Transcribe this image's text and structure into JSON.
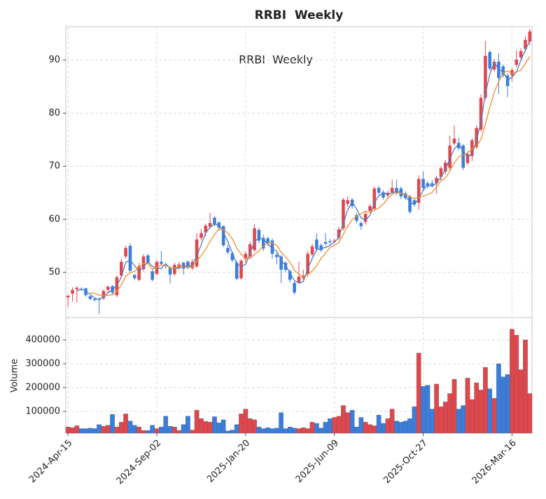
{
  "chart_data": {
    "type": "candlestick",
    "title": "RRBI  Weekly",
    "annotation": "RRBI  Weekly",
    "up_color": "#e0474c",
    "down_color": "#3b7ddd",
    "grid": true,
    "ylim": [
      41.5,
      96.3
    ],
    "yticks": [
      50,
      60,
      70,
      80,
      90
    ],
    "xticks": [
      "2024-Apr-15",
      "2024-Sep-02",
      "2025-Jan-20",
      "2025-Jun-09",
      "2025-Oct-27",
      "2026-Mar-16"
    ],
    "categories": [
      "2024-Apr-15",
      "2024-Apr-22",
      "2024-Apr-29",
      "2024-May-06",
      "2024-May-13",
      "2024-May-20",
      "2024-May-27",
      "2024-Jun-03",
      "2024-Jun-10",
      "2024-Jun-17",
      "2024-Jun-24",
      "2024-Jul-01",
      "2024-Jul-08",
      "2024-Jul-15",
      "2024-Jul-22",
      "2024-Jul-29",
      "2024-Aug-05",
      "2024-Aug-12",
      "2024-Aug-19",
      "2024-Aug-26",
      "2024-Sep-02",
      "2024-Sep-09",
      "2024-Sep-16",
      "2024-Sep-23",
      "2024-Sep-30",
      "2024-Oct-07",
      "2024-Oct-14",
      "2024-Oct-21",
      "2024-Oct-28",
      "2024-Nov-04",
      "2024-Nov-11",
      "2024-Nov-18",
      "2024-Nov-25",
      "2024-Dec-02",
      "2024-Dec-09",
      "2024-Dec-16",
      "2024-Dec-23",
      "2024-Dec-30",
      "2025-Jan-06",
      "2025-Jan-13",
      "2025-Jan-20",
      "2025-Jan-27",
      "2025-Feb-03",
      "2025-Feb-10",
      "2025-Feb-17",
      "2025-Feb-24",
      "2025-Mar-03",
      "2025-Mar-10",
      "2025-Mar-17",
      "2025-Mar-24",
      "2025-Mar-31",
      "2025-Apr-07",
      "2025-Apr-14",
      "2025-Apr-21",
      "2025-Apr-28",
      "2025-May-05",
      "2025-May-12",
      "2025-May-19",
      "2025-May-26",
      "2025-Jun-02",
      "2025-Jun-09",
      "2025-Jun-16",
      "2025-Jun-23",
      "2025-Jun-30",
      "2025-Jul-07",
      "2025-Jul-14",
      "2025-Jul-21",
      "2025-Jul-28",
      "2025-Aug-04",
      "2025-Aug-11",
      "2025-Aug-18",
      "2025-Aug-25",
      "2025-Sep-01",
      "2025-Sep-08",
      "2025-Sep-15",
      "2025-Sep-22",
      "2025-Sep-29",
      "2025-Oct-06",
      "2025-Oct-13",
      "2025-Oct-20",
      "2025-Oct-27",
      "2025-Nov-03",
      "2025-Nov-10",
      "2025-Nov-17",
      "2025-Nov-24",
      "2025-Dec-01",
      "2025-Dec-08",
      "2025-Dec-15",
      "2025-Dec-22",
      "2025-Dec-29",
      "2026-Jan-05",
      "2026-Jan-12",
      "2026-Jan-19",
      "2026-Jan-26",
      "2026-Feb-02",
      "2026-Feb-09",
      "2026-Feb-16",
      "2026-Feb-23",
      "2026-Mar-02",
      "2026-Mar-09",
      "2026-Mar-16",
      "2026-Mar-23",
      "2026-Mar-30",
      "2026-Apr-06",
      "2026-Apr-13"
    ],
    "open": [
      45.3,
      46.0,
      46.8,
      46.9,
      47.0,
      45.5,
      45.0,
      45.0,
      45.1,
      46.7,
      47.4,
      45.7,
      49.4,
      53.0,
      55.0,
      49.5,
      48.6,
      50.6,
      53.2,
      50.2,
      49.7,
      52.0,
      51.5,
      50.9,
      49.7,
      50.9,
      51.8,
      52.0,
      50.8,
      51.1,
      56.5,
      57.5,
      58.6,
      60.3,
      59.4,
      58.7,
      54.6,
      53.6,
      51.8,
      48.9,
      52.5,
      53.0,
      54.2,
      58.0,
      56.5,
      56.4,
      56.0,
      53.3,
      53.0,
      51.8,
      50.2,
      48.0,
      48.1,
      48.9,
      49.7,
      53.4,
      56.2,
      55.1,
      55.7,
      55.9,
      55.8,
      56.5,
      58.3,
      62.9,
      63.7,
      60.8,
      59.3,
      59.5,
      61.6,
      62.0,
      65.9,
      65.1,
      64.5,
      65.1,
      65.9,
      65.8,
      64.9,
      64.3,
      63.6,
      63.1,
      67.6,
      66.8,
      66.8,
      66.8,
      68.0,
      69.0,
      69.7,
      74.3,
      74.4,
      73.9,
      70.6,
      71.9,
      73.6,
      76.9,
      82.9,
      91.5,
      88.2,
      89.7,
      88.8,
      87.1,
      87.1,
      89.1,
      90.5,
      92.1,
      93.5
    ],
    "high": [
      45.8,
      47.2,
      47.4,
      47.2,
      47.1,
      45.6,
      45.2,
      45.3,
      46.8,
      47.5,
      47.6,
      49.4,
      52.6,
      55.0,
      55.5,
      49.7,
      51.8,
      53.4,
      53.5,
      50.8,
      52.3,
      54.0,
      51.8,
      51.2,
      51.8,
      52.0,
      52.0,
      52.3,
      52.5,
      57.4,
      58.2,
      59.2,
      61.2,
      60.6,
      59.6,
      58.9,
      55.2,
      54.0,
      52.2,
      52.5,
      54.0,
      55.8,
      59.1,
      58.4,
      57.1,
      56.7,
      56.4,
      53.6,
      53.3,
      52.1,
      50.6,
      48.3,
      52.0,
      50.5,
      54.0,
      55.4,
      57.4,
      55.5,
      57.4,
      56.3,
      56.3,
      58.6,
      64.0,
      64.3,
      64.0,
      61.2,
      59.6,
      61.5,
      62.9,
      66.2,
      66.3,
      65.5,
      65.4,
      67.5,
      67.5,
      66.2,
      65.3,
      64.6,
      64.0,
      68.3,
      69.0,
      67.2,
      67.4,
      68.2,
      70.0,
      71.2,
      75.8,
      77.7,
      75.3,
      74.2,
      72.8,
      75.3,
      77.7,
      83.5,
      93.6,
      91.8,
      90.2,
      91.3,
      89.2,
      87.5,
      88.5,
      91.9,
      92.2,
      94.5,
      95.9
    ],
    "low": [
      43.6,
      44.5,
      44.3,
      46.5,
      45.4,
      44.7,
      44.5,
      42.2,
      44.8,
      46.0,
      45.8,
      45.3,
      49.0,
      52.6,
      50.0,
      48.5,
      48.3,
      50.2,
      51.5,
      48.3,
      49.4,
      51.2,
      50.7,
      47.9,
      49.3,
      50.5,
      49.6,
      50.6,
      50.4,
      50.8,
      56.0,
      56.8,
      58.3,
      58.7,
      57.8,
      54.8,
      53.4,
      51.9,
      48.5,
      48.6,
      51.8,
      52.5,
      53.8,
      55.5,
      54.0,
      55.0,
      52.6,
      51.5,
      48.0,
      50.0,
      48.1,
      45.8,
      47.8,
      48.5,
      49.2,
      53.0,
      54.0,
      53.8,
      55.0,
      55.3,
      55.5,
      56.1,
      57.9,
      62.4,
      62.0,
      59.3,
      58.0,
      59.0,
      61.2,
      61.6,
      64.5,
      63.7,
      64.1,
      64.8,
      64.5,
      63.8,
      63.6,
      61.0,
      62.4,
      61.8,
      65.5,
      65.8,
      66.0,
      64.8,
      67.2,
      68.5,
      69.2,
      73.9,
      73.0,
      69.3,
      70.2,
      71.0,
      73.2,
      76.5,
      82.5,
      88.0,
      87.8,
      83.6,
      86.7,
      83.0,
      86.0,
      88.7,
      90.1,
      91.5,
      92.8
    ],
    "close": [
      45.6,
      46.7,
      47.1,
      46.8,
      45.7,
      45.0,
      44.8,
      44.8,
      46.5,
      47.3,
      46.2,
      49.1,
      52.0,
      54.6,
      50.3,
      48.9,
      51.2,
      53.0,
      51.8,
      48.6,
      52.0,
      51.6,
      51.2,
      49.6,
      51.4,
      51.5,
      50.7,
      51.2,
      52.0,
      56.2,
      57.4,
      58.8,
      59.3,
      59.1,
      58.4,
      55.1,
      53.8,
      52.3,
      48.8,
      52.2,
      53.5,
      55.3,
      58.3,
      56.0,
      54.5,
      55.5,
      53.5,
      52.9,
      50.5,
      50.5,
      48.6,
      46.2,
      49.2,
      49.4,
      53.5,
      54.9,
      54.4,
      54.2,
      55.4,
      55.7,
      56.0,
      58.1,
      63.7,
      63.6,
      62.5,
      59.7,
      58.7,
      61.0,
      62.5,
      65.8,
      65.0,
      64.1,
      65.0,
      65.9,
      64.9,
      64.3,
      64.0,
      61.4,
      62.8,
      67.6,
      65.9,
      66.2,
      66.4,
      67.8,
      69.6,
      70.7,
      73.9,
      75.2,
      73.4,
      69.7,
      72.3,
      74.9,
      77.2,
      82.9,
      90.8,
      88.4,
      89.7,
      86.6,
      87.1,
      85.1,
      88.1,
      90.1,
      91.7,
      93.8,
      95.4
    ],
    "moving_averages": [
      {
        "color": "#4a7fc1",
        "values": [
          null,
          null,
          46.47,
          46.87,
          46.53,
          45.83,
          45.17,
          44.87,
          45.37,
          46.2,
          46.67,
          47.53,
          49.1,
          51.9,
          52.3,
          51.27,
          50.13,
          51.03,
          52.0,
          51.13,
          50.8,
          50.73,
          51.6,
          50.8,
          50.73,
          50.83,
          51.2,
          51.13,
          51.3,
          53.13,
          55.2,
          57.47,
          58.5,
          59.07,
          58.93,
          57.53,
          55.77,
          53.73,
          51.63,
          51.1,
          51.5,
          53.67,
          55.7,
          56.53,
          56.27,
          55.33,
          54.5,
          53.97,
          52.3,
          51.3,
          49.87,
          48.43,
          48.0,
          48.27,
          50.7,
          52.6,
          54.27,
          54.5,
          54.67,
          55.1,
          55.7,
          56.6,
          59.27,
          61.8,
          63.27,
          61.93,
          60.3,
          59.8,
          60.73,
          63.1,
          64.43,
          64.97,
          64.7,
          65.0,
          65.27,
          65.03,
          64.4,
          63.23,
          62.73,
          63.93,
          65.43,
          66.57,
          66.17,
          66.8,
          67.93,
          69.37,
          71.4,
          73.27,
          74.17,
          72.77,
          71.8,
          72.3,
          74.8,
          78.33,
          83.63,
          87.37,
          89.63,
          88.23,
          87.8,
          86.27,
          86.77,
          87.77,
          89.97,
          91.87,
          93.63
        ]
      },
      {
        "color": "#f28e2b",
        "values": [
          null,
          null,
          null,
          null,
          null,
          46.15,
          46.02,
          45.7,
          45.6,
          45.68,
          45.77,
          46.45,
          47.65,
          49.28,
          49.92,
          50.18,
          51.02,
          51.67,
          51.63,
          50.63,
          50.92,
          51.37,
          51.37,
          50.8,
          50.73,
          51.22,
          51.0,
          50.93,
          51.07,
          52.17,
          53.17,
          54.38,
          55.82,
          57.13,
          58.2,
          58.02,
          57.42,
          56.33,
          54.58,
          53.43,
          52.62,
          52.65,
          53.4,
          54.02,
          54.97,
          55.52,
          55.52,
          55.12,
          53.82,
          52.9,
          51.92,
          50.37,
          49.65,
          49.07,
          49.57,
          50.3,
          51.27,
          52.6,
          53.63,
          54.68,
          55.1,
          55.63,
          57.18,
          58.75,
          59.93,
          60.6,
          61.05,
          61.53,
          61.33,
          61.7,
          62.12,
          62.85,
          63.9,
          64.72,
          65.12,
          64.87,
          64.7,
          64.25,
          63.88,
          64.17,
          64.33,
          64.65,
          65.05,
          66.12,
          67.25,
          67.77,
          69.1,
          70.6,
          71.77,
          72.08,
          72.53,
          73.23,
          73.78,
          75.07,
          77.97,
          81.08,
          83.98,
          85.93,
          87.58,
          87.95,
          87.5,
          87.78,
          88.12,
          89.32,
          90.7
        ]
      }
    ],
    "volume": {
      "label": "Volume",
      "ylim": [
        9000,
        494000
      ],
      "yticks": [
        100000,
        200000,
        300000,
        400000
      ],
      "values": [
        35000,
        32000,
        40000,
        28000,
        28000,
        30000,
        28000,
        45000,
        38000,
        42000,
        88000,
        35000,
        55000,
        90000,
        60000,
        42000,
        35000,
        20000,
        20000,
        42000,
        28000,
        35000,
        80000,
        38000,
        35000,
        20000,
        45000,
        80000,
        22000,
        105000,
        70000,
        58000,
        55000,
        78000,
        52000,
        65000,
        18000,
        22000,
        45000,
        90000,
        110000,
        70000,
        65000,
        35000,
        28000,
        32000,
        28000,
        30000,
        95000,
        28000,
        35000,
        30000,
        28000,
        32000,
        28000,
        55000,
        50000,
        30000,
        55000,
        70000,
        75000,
        80000,
        125000,
        95000,
        105000,
        35000,
        75000,
        55000,
        45000,
        40000,
        85000,
        50000,
        70000,
        110000,
        60000,
        55000,
        60000,
        70000,
        120000,
        345000,
        205000,
        210000,
        110000,
        215000,
        120000,
        140000,
        175000,
        235000,
        110000,
        125000,
        240000,
        150000,
        220000,
        190000,
        285000,
        195000,
        155000,
        300000,
        245000,
        255000,
        445000,
        420000,
        275000,
        400000,
        175000
      ]
    }
  }
}
